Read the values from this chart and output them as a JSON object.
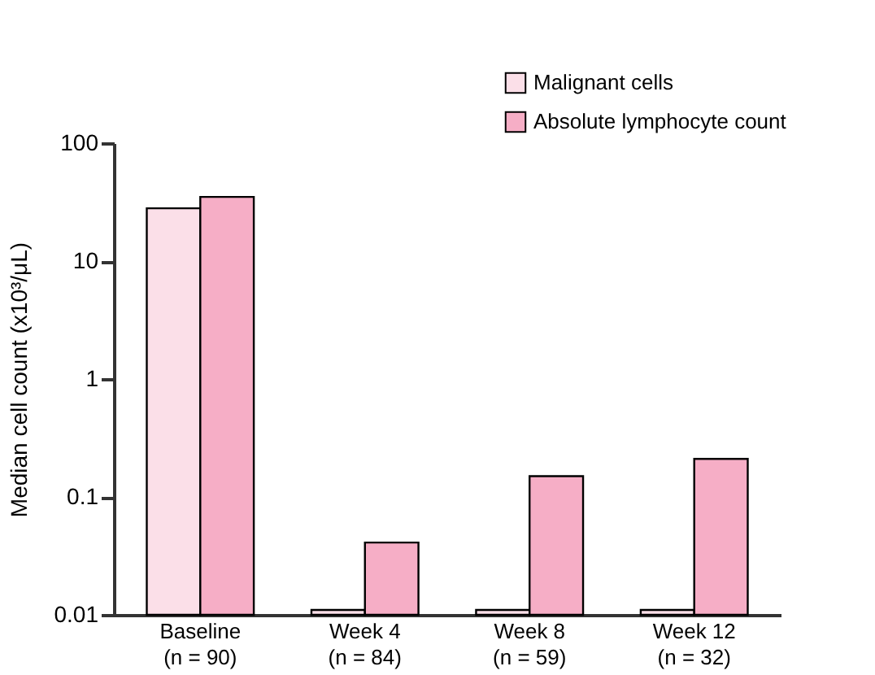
{
  "chart_data": {
    "type": "bar",
    "ylabel": "Median cell count (x10³/μL)",
    "categories": [
      "Baseline\n(n = 90)",
      "Week 4\n(n = 84)",
      "Week 8\n(n = 59)",
      "Week 12\n(n = 32)"
    ],
    "series": [
      {
        "name": "Malignant cells",
        "color": "#fbdfe8",
        "values": [
          28,
          0.011,
          0.011,
          0.011
        ]
      },
      {
        "name": "Absolute lymphocyte count",
        "color": "#f6aec6",
        "values": [
          35,
          0.041,
          0.15,
          0.21
        ]
      }
    ],
    "log": true,
    "ylim": [
      0.01,
      100
    ],
    "yticks": [
      0.01,
      0.1,
      1,
      10,
      100
    ],
    "legend": "top right",
    "grid": false
  }
}
